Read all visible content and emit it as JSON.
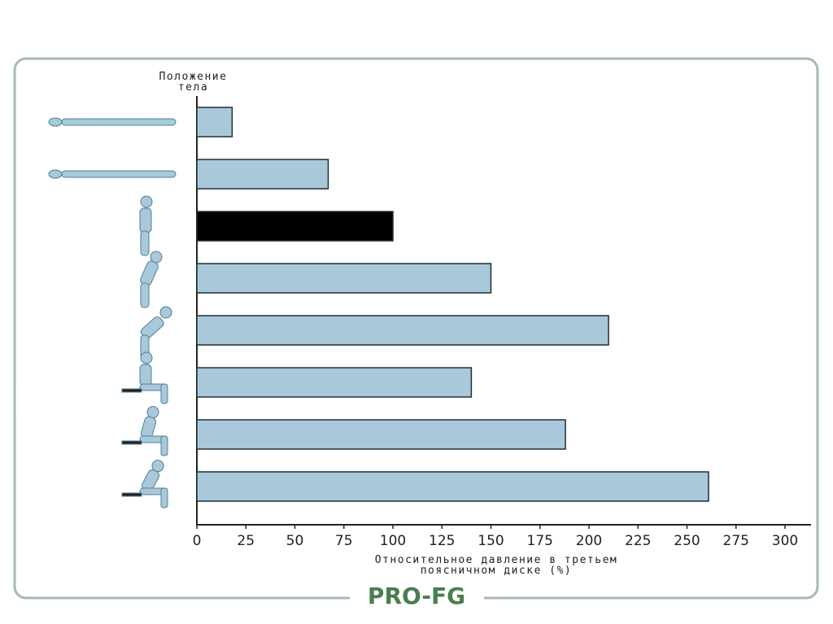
{
  "chart_data": {
    "type": "hbar",
    "y_label": "Положение\nтела",
    "x_label": "Относительное давление в третьем\nпоясничном диске (%)",
    "categories": [
      null,
      null,
      null,
      null,
      null,
      null,
      null,
      null
    ],
    "values": [
      18,
      67,
      100,
      150,
      210,
      140,
      188,
      261
    ],
    "colors": [
      "#a9c8d9",
      "#a9c8d9",
      "#000000",
      "#a9c8d9",
      "#a9c8d9",
      "#a9c8d9",
      "#a9c8d9",
      "#a9c8d9"
    ],
    "xlim": [
      0,
      300
    ],
    "xticks": [
      0,
      25,
      50,
      75,
      100,
      125,
      150,
      175,
      200,
      225,
      250,
      275,
      300
    ],
    "grid": false
  },
  "logo": {
    "text": "PRO-FG"
  }
}
